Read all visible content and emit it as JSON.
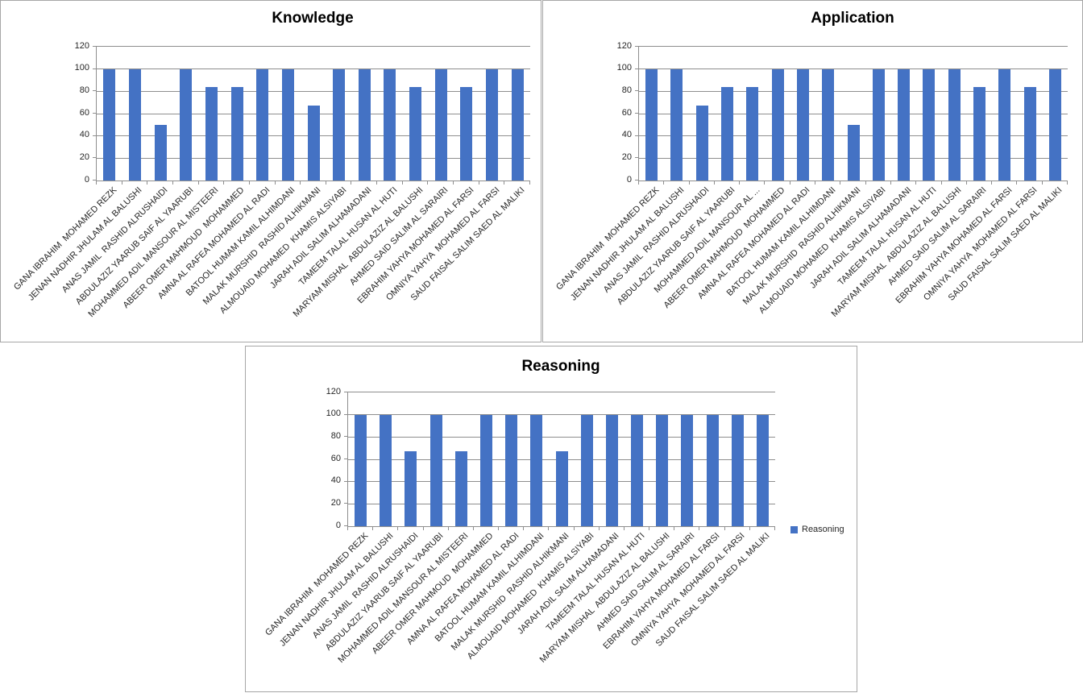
{
  "colors": {
    "bar": "#4472C4",
    "gridline": "#8E8E8E",
    "axis": "#8E8E8E",
    "panel_border": "#A6A6A6",
    "title": "#000000",
    "tick_label": "#262626"
  },
  "chart_data": [
    {
      "id": "knowledge",
      "type": "bar",
      "title": "Knowledge",
      "xlabel": "",
      "ylabel": "",
      "ylim": [
        0,
        120
      ],
      "yticks": [
        0,
        20,
        40,
        60,
        80,
        100,
        120
      ],
      "grid": true,
      "legend": null,
      "categories": [
        "GANA IBRAHIM  MOHAMED REZK",
        "JENAN NADHIR JHULAM AL BALUSHI",
        "ANAS JAMIL  RASHID ALRUSHAIDI",
        "ABDULAZIZ YAARUB SAIF AL YAARUBI",
        "MOHAMMED ADIL MANSOUR AL MISTEERI",
        "ABEER OMER MAHMOUD  MOHAMMED",
        "AMNA AL RAFEA MOHAMED AL RADI",
        "BATOOL HUMAM KAMIL ALHIMDANI",
        "MALAK MURSHID  RASHID ALHIKMANI",
        "ALMOUAID MOHAMED  KHAMIS ALSIYABI",
        "JARAH ADIL SALIM ALHAMADANI",
        "TAMEEM TALAL HUSAN AL HUTI",
        "MARYAM MISHAL  ABDULAZIZ AL BALUSHI",
        "AHMED SAID SALIM AL SARAIRI",
        "EBRAHIM YAHYA MOHAMED AL FARSI",
        "OMNIYA YAHYA  MOHAMED AL FARSI",
        "SAUD FAISAL SALIM SAED AL MALIKI"
      ],
      "series": [
        {
          "name": "Knowledge",
          "values": [
            100,
            100,
            50,
            100,
            84,
            84,
            100,
            100,
            67,
            100,
            100,
            100,
            84,
            100,
            84,
            100,
            100
          ]
        }
      ]
    },
    {
      "id": "application",
      "type": "bar",
      "title": "Application",
      "xlabel": "",
      "ylabel": "",
      "ylim": [
        0,
        120
      ],
      "yticks": [
        0,
        20,
        40,
        60,
        80,
        100,
        120
      ],
      "grid": true,
      "legend": null,
      "categories": [
        "GANA IBRAHIM  MOHAMED REZK",
        "JENAN NADHIR JHULAM AL BALUSHI",
        "ANAS JAMIL  RASHID ALRUSHAIDI",
        "ABDULAZIZ YAARUB SAIF AL YAARUBI",
        "MOHAMMED ADIL MANSOUR AL ...",
        "ABEER OMER MAHMOUD  MOHAMMED",
        "AMNA AL RAFEA MOHAMED AL RADI",
        "BATOOL HUMAM KAMIL ALHIMDANI",
        "MALAK MURSHID  RASHID ALHIKMANI",
        "ALMOUAID MOHAMED  KHAMIS ALSIYABI",
        "JARAH ADIL SALIM ALHAMADANI",
        "TAMEEM TALAL HUSAN AL HUTI",
        "MARYAM MISHAL  ABDULAZIZ AL BALUSHI",
        "AHMED SAID SALIM AL SARAIRI",
        "EBRAHIM YAHYA MOHAMED AL FARSI",
        "OMNIYA YAHYA  MOHAMED AL FARSI",
        "SAUD FAISAL SALIM SAED AL MALIKI"
      ],
      "series": [
        {
          "name": "Application",
          "values": [
            100,
            100,
            67,
            84,
            84,
            100,
            100,
            100,
            50,
            100,
            100,
            100,
            100,
            84,
            100,
            84,
            100
          ]
        }
      ]
    },
    {
      "id": "reasoning",
      "type": "bar",
      "title": "Reasoning",
      "xlabel": "",
      "ylabel": "",
      "ylim": [
        0,
        120
      ],
      "yticks": [
        0,
        20,
        40,
        60,
        80,
        100,
        120
      ],
      "grid": true,
      "legend": {
        "label": "Reasoning",
        "position": "right"
      },
      "categories": [
        "GANA IBRAHIM  MOHAMED REZK",
        "JENAN NADHIR JHULAM AL BALUSHI",
        "ANAS JAMIL  RASHID ALRUSHAIDI",
        "ABDULAZIZ YAARUB SAIF AL YAARUBI",
        "MOHAMMED ADIL MANSOUR AL MISTEERI",
        "ABEER OMER MAHMOUD  MOHAMMED",
        "AMNA AL RAFEA MOHAMED AL RADI",
        "BATOOL HUMAM KAMIL ALHIMDANI",
        "MALAK MURSHID  RASHID ALHIKMANI",
        "ALMOUAID MOHAMED  KHAMIS ALSIYABI",
        "JARAH ADIL SALIM ALHAMADANI",
        "TAMEEM TALAL HUSAN AL HUTI",
        "MARYAM MISHAL  ABDULAZIZ AL BALUSHI",
        "AHMED SAID SALIM AL SARAIRI",
        "EBRAHIM YAHYA MOHAMED AL FARSI",
        "OMNIYA YAHYA  MOHAMED AL FARSI",
        "SAUD FAISAL SALIM SAED AL MALIKI"
      ],
      "series": [
        {
          "name": "Reasoning",
          "values": [
            100,
            100,
            67,
            100,
            67,
            100,
            100,
            100,
            67,
            100,
            100,
            100,
            100,
            100,
            100,
            100,
            100
          ]
        }
      ]
    }
  ]
}
